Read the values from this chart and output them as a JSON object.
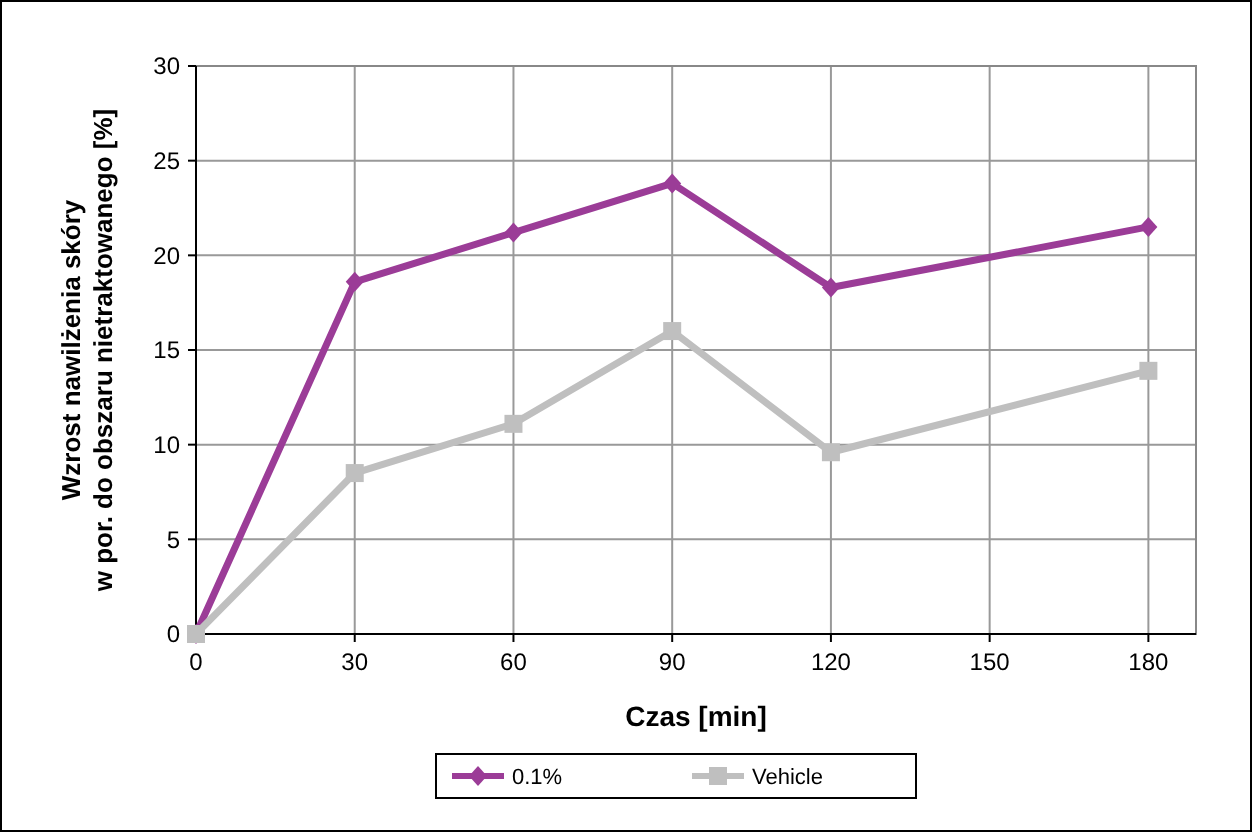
{
  "chart_data": {
    "type": "line",
    "xlabel": "Czas [min]",
    "ylabel": "Wzrost nawilżenia skóry\nw por. do obszaru nietraktowanego [%]",
    "x": [
      0,
      30,
      60,
      90,
      120,
      180
    ],
    "series": [
      {
        "name": "0.1%",
        "color": "#9b3c97",
        "marker": "diamond",
        "values": [
          0,
          18.6,
          21.2,
          23.8,
          18.3,
          21.5
        ]
      },
      {
        "name": "Vehicle",
        "color": "#bfbfbf",
        "marker": "square",
        "values": [
          0,
          8.5,
          11.1,
          16.0,
          9.6,
          13.9
        ]
      }
    ],
    "xlim": [
      0,
      189
    ],
    "xticks": [
      0,
      30,
      60,
      90,
      120,
      150,
      180
    ],
    "ylim": [
      0,
      30
    ],
    "yticks": [
      0,
      5,
      10,
      15,
      20,
      25,
      30
    ],
    "grid": true,
    "legend": "bottom"
  }
}
